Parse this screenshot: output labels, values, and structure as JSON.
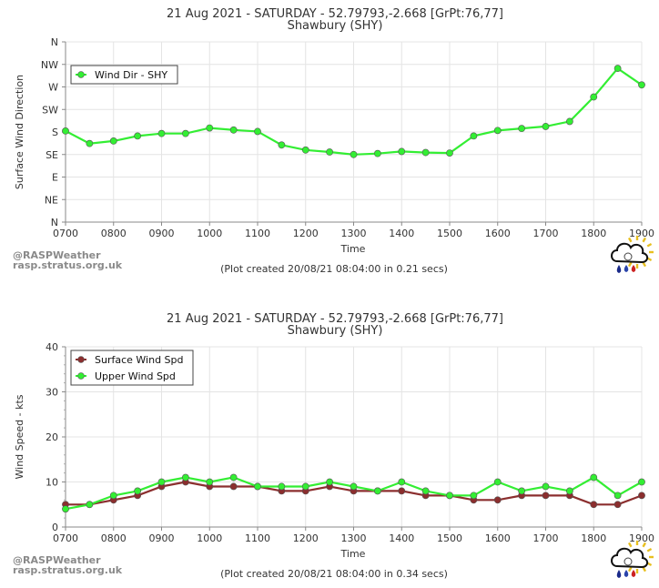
{
  "branding": {
    "line1": "@RASPWeather",
    "line2": "rasp.stratus.org.uk"
  },
  "chart_data": [
    {
      "type": "line",
      "title": "21 Aug 2021 - SATURDAY - 52.79793,-2.668 [GrPt:76,77]",
      "subtitle": "Shawbury (SHY)",
      "xlabel": "Time",
      "ylabel": "Surface Wind Direction",
      "footer": "(Plot created 20/08/21 08:04:00 in 0.21 secs)",
      "x_ticks": [
        "0700",
        "0800",
        "0900",
        "1000",
        "1100",
        "1200",
        "1300",
        "1400",
        "1500",
        "1600",
        "1700",
        "1800",
        "1900"
      ],
      "xlim": [
        700,
        1900
      ],
      "y_ticks": [
        "N",
        "NE",
        "E",
        "SE",
        "S",
        "SW",
        "W",
        "NW",
        "N"
      ],
      "ylim": [
        0,
        360
      ],
      "legend_position": "top-left",
      "series": [
        {
          "name": "Wind Dir - SHY",
          "color": "#33ee33",
          "x": [
            700,
            750,
            800,
            850,
            900,
            950,
            1000,
            1050,
            1100,
            1150,
            1200,
            1250,
            1300,
            1350,
            1400,
            1450,
            1500,
            1550,
            1600,
            1650,
            1700,
            1750,
            1800,
            1850,
            1900
          ],
          "values": [
            182,
            157,
            162,
            172,
            177,
            177,
            188,
            184,
            181,
            154,
            144,
            140,
            135,
            137,
            141,
            139,
            138,
            172,
            183,
            187,
            191,
            201,
            250,
            307,
            274
          ]
        }
      ]
    },
    {
      "type": "line",
      "title": "21 Aug 2021 - SATURDAY - 52.79793,-2.668 [GrPt:76,77]",
      "subtitle": "Shawbury (SHY)",
      "xlabel": "Time",
      "ylabel": "Wind Speed - kts",
      "footer": "(Plot created 20/08/21 08:04:00 in 0.34 secs)",
      "x_ticks": [
        "0700",
        "0800",
        "0900",
        "1000",
        "1100",
        "1200",
        "1300",
        "1400",
        "1500",
        "1600",
        "1700",
        "1800",
        "1900"
      ],
      "xlim": [
        700,
        1900
      ],
      "y_ticks": [
        "0",
        "10",
        "20",
        "30",
        "40"
      ],
      "ylim": [
        0,
        40
      ],
      "legend_position": "top-left",
      "series": [
        {
          "name": "Surface Wind Spd",
          "color": "#8b2e2e",
          "x": [
            700,
            750,
            800,
            850,
            900,
            950,
            1000,
            1050,
            1100,
            1150,
            1200,
            1250,
            1300,
            1350,
            1400,
            1450,
            1500,
            1550,
            1600,
            1650,
            1700,
            1750,
            1800,
            1850,
            1900
          ],
          "values": [
            5,
            5,
            6,
            7,
            9,
            10,
            9,
            9,
            9,
            8,
            8,
            9,
            8,
            8,
            8,
            7,
            7,
            6,
            6,
            7,
            7,
            7,
            5,
            5,
            7
          ]
        },
        {
          "name": "Upper Wind Spd",
          "color": "#33ee33",
          "x": [
            700,
            750,
            800,
            850,
            900,
            950,
            1000,
            1050,
            1100,
            1150,
            1200,
            1250,
            1300,
            1350,
            1400,
            1450,
            1500,
            1550,
            1600,
            1650,
            1700,
            1750,
            1800,
            1850,
            1900
          ],
          "values": [
            4,
            5,
            7,
            8,
            10,
            11,
            10,
            11,
            9,
            9,
            9,
            10,
            9,
            8,
            10,
            8,
            7,
            7,
            10,
            8,
            9,
            8,
            11,
            7,
            10
          ]
        }
      ]
    }
  ]
}
